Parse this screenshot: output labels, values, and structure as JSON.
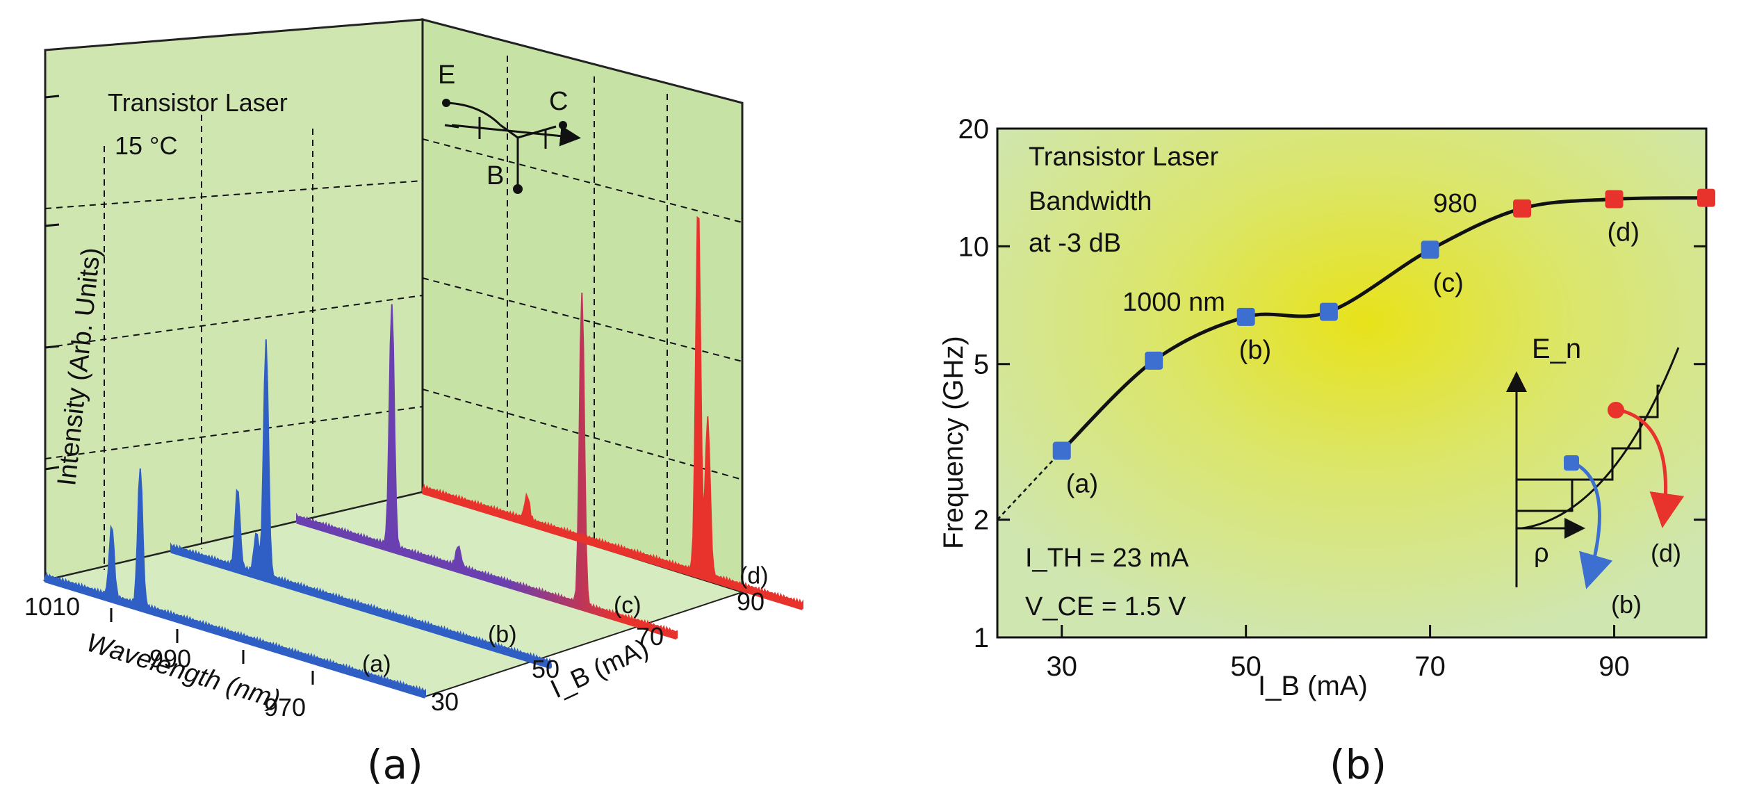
{
  "captions": {
    "a": "(a)",
    "b": "(b)"
  },
  "panel_a": {
    "title_line1": "Transistor Laser",
    "title_line2": "15 °C",
    "ylabel": "Intensity (Arb. Units)",
    "xlabel": "Wavelength (nm)",
    "zlabel": "I_B (mA)",
    "schematic_labels": {
      "emitter": "E",
      "collector": "C",
      "base": "B"
    },
    "colors": {
      "background": "#cfe6b0",
      "blue": "#2f5fc4",
      "purple": "#6a3fb0",
      "red": "#e8322c"
    }
  },
  "panel_b": {
    "annotations": {
      "title": "Transistor Laser",
      "bw": "Bandwidth",
      "db": "at -3 dB",
      "label1000": "1000 nm",
      "label980": "980",
      "ith": "I_TH = 23 mA",
      "vce": "V_CE = 1.5 V"
    },
    "inset": {
      "en": "E_n",
      "rho": "ρ",
      "b": "(b)",
      "d": "(d)"
    },
    "colors": {
      "yellow": "#e8e21a",
      "green": "#cfe6b0",
      "blue": "#3d6fd0",
      "red": "#e8322c"
    }
  },
  "chart_data": [
    {
      "type": "line",
      "title": "Transistor Laser 15 °C",
      "xlabel": "Wavelength (nm)",
      "ylabel": "Intensity (Arb. Units)",
      "zlabel": "I_B (mA)",
      "x_ticks": [
        "1010",
        "990",
        "970"
      ],
      "z_ticks": [
        "30",
        "50",
        "70",
        "90"
      ],
      "xlim": [
        1010,
        970
      ],
      "zlim": [
        30,
        90
      ],
      "series": [
        {
          "name": "(a)",
          "ib": 30,
          "color": "blue",
          "peaks": [
            {
              "wl": 1003,
              "h": 0.18
            },
            {
              "wl": 1000,
              "h": 0.35
            }
          ]
        },
        {
          "name": "(b)",
          "ib": 50,
          "color": "blue",
          "peaks": [
            {
              "wl": 1003,
              "h": 0.2
            },
            {
              "wl": 1001,
              "h": 0.1
            },
            {
              "wl": 1000,
              "h": 0.6
            }
          ]
        },
        {
          "name": "(c)",
          "ib": 70,
          "color": "purple-red",
          "peaks": [
            {
              "wl": 1000,
              "h": 0.62
            },
            {
              "wl": 993,
              "h": 0.05
            },
            {
              "wl": 980,
              "h": 0.8
            }
          ]
        },
        {
          "name": "(d)",
          "ib": 90,
          "color": "red",
          "peaks": [
            {
              "wl": 999,
              "h": 0.06
            },
            {
              "wl": 981,
              "h": 0.95
            },
            {
              "wl": 980,
              "h": 0.4
            }
          ]
        }
      ]
    },
    {
      "type": "line",
      "title": "Transistor Laser Bandwidth at -3 dB",
      "xlabel": "I_B (mA)",
      "ylabel": "Frequency (GHz)",
      "xlim": [
        23,
        100
      ],
      "ylim": [
        1,
        20
      ],
      "yscale": "log",
      "x_ticks": [
        "30",
        "50",
        "70",
        "90"
      ],
      "y_ticks": [
        "1",
        "2",
        "5",
        "10",
        "20"
      ],
      "points": [
        {
          "x": 30,
          "y": 3.0,
          "color": "blue",
          "label": "(a)"
        },
        {
          "x": 40,
          "y": 5.1,
          "color": "blue",
          "label": ""
        },
        {
          "x": 50,
          "y": 6.6,
          "color": "blue",
          "label": "(b)"
        },
        {
          "x": 59,
          "y": 6.8,
          "color": "blue",
          "label": ""
        },
        {
          "x": 70,
          "y": 9.8,
          "color": "blue",
          "label": "(c)"
        },
        {
          "x": 80,
          "y": 12.5,
          "color": "red",
          "label": ""
        },
        {
          "x": 90,
          "y": 13.2,
          "color": "red",
          "label": "(d)"
        },
        {
          "x": 100,
          "y": 13.3,
          "color": "red",
          "label": ""
        }
      ],
      "extrapolation": [
        {
          "x": 23,
          "y": 2.0
        },
        {
          "x": 30,
          "y": 3.0
        }
      ]
    }
  ]
}
